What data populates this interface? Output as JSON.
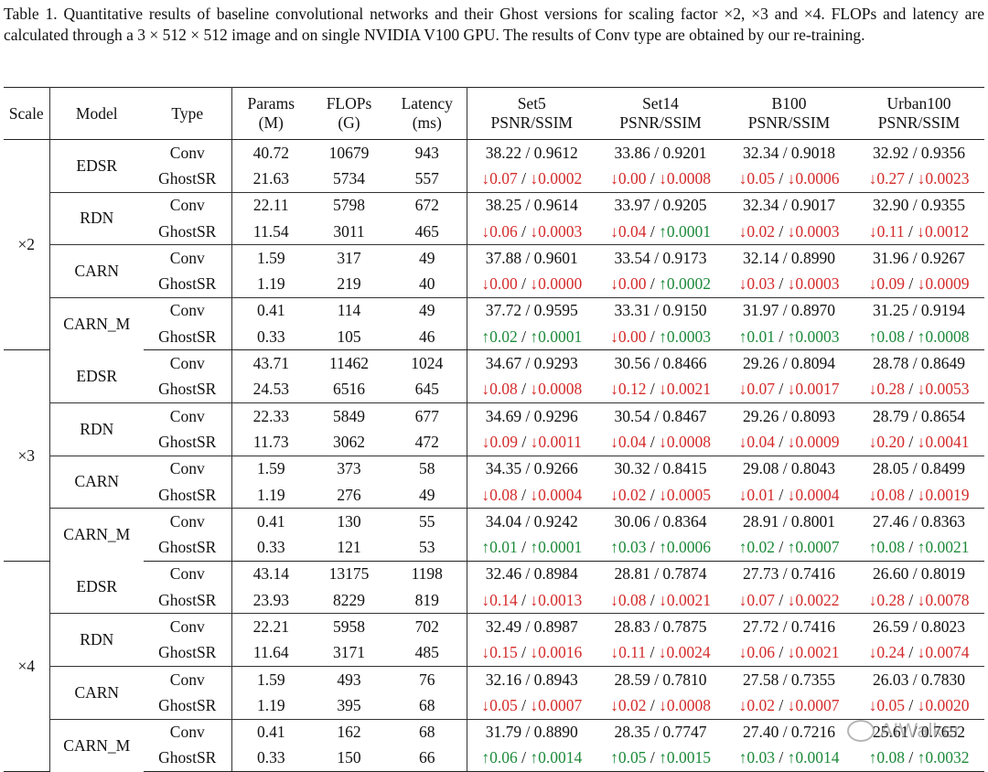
{
  "caption": "Table 1. Quantitative results of baseline convolutional networks and their Ghost versions for scaling factor ×2, ×3 and ×4. FLOPs and latency are calculated through a 3 × 512 × 512 image and on single NVIDIA V100 GPU. The results of Conv type are obtained by our re-training.",
  "headers": {
    "scale": "Scale",
    "model": "Model",
    "type": "Type",
    "params": "Params",
    "params_unit": "(M)",
    "flops": "FLOPs",
    "flops_unit": "(G)",
    "latency": "Latency",
    "latency_unit": "(ms)",
    "set5": "Set5",
    "set14": "Set14",
    "b100": "B100",
    "urban100": "Urban100",
    "metric": "PSNR/SSIM"
  },
  "colors": {
    "down": "#d42b2b",
    "up": "#1d8a3a"
  },
  "scales": [
    {
      "label": "×2",
      "models": [
        {
          "name": "EDSR",
          "conv": [
            "40.72",
            "10679",
            "943",
            "38.22 / 0.9612",
            "33.86 / 0.9201",
            "32.34 / 0.9018",
            "32.92 / 0.9356"
          ],
          "ghost": [
            "21.63",
            "5734",
            "557"
          ],
          "deltas": [
            [
              "↓0.07",
              "↓0.0002"
            ],
            [
              "↓0.00",
              "↓0.0008"
            ],
            [
              "↓0.05",
              "↓0.0006"
            ],
            [
              "↓0.27",
              "↓0.0023"
            ]
          ]
        },
        {
          "name": "RDN",
          "conv": [
            "22.11",
            "5798",
            "672",
            "38.25 / 0.9614",
            "33.97 / 0.9205",
            "32.34 / 0.9017",
            "32.90 / 0.9355"
          ],
          "ghost": [
            "11.54",
            "3011",
            "465"
          ],
          "deltas": [
            [
              "↓0.06",
              "↓0.0003"
            ],
            [
              "↓0.04",
              "↑0.0001"
            ],
            [
              "↓0.02",
              "↓0.0003"
            ],
            [
              "↓0.11",
              "↓0.0012"
            ]
          ]
        },
        {
          "name": "CARN",
          "conv": [
            "1.59",
            "317",
            "49",
            "37.88 / 0.9601",
            "33.54 / 0.9173",
            "32.14 / 0.8990",
            "31.96 / 0.9267"
          ],
          "ghost": [
            "1.19",
            "219",
            "40"
          ],
          "deltas": [
            [
              "↓0.00",
              "↓0.0000"
            ],
            [
              "↓0.00",
              "↑0.0002"
            ],
            [
              "↓0.03",
              "↓0.0003"
            ],
            [
              "↓0.09",
              "↓0.0009"
            ]
          ]
        },
        {
          "name": "CARN_M",
          "conv": [
            "0.41",
            "114",
            "49",
            "37.72 / 0.9595",
            "33.31 / 0.9150",
            "31.97 / 0.8970",
            "31.25 / 0.9194"
          ],
          "ghost": [
            "0.33",
            "105",
            "46"
          ],
          "deltas": [
            [
              "↑0.02",
              "↑0.0001"
            ],
            [
              "↓0.00",
              "↑0.0003"
            ],
            [
              "↑0.01",
              "↑0.0003"
            ],
            [
              "↑0.08",
              "↑0.0008"
            ]
          ]
        }
      ]
    },
    {
      "label": "×3",
      "models": [
        {
          "name": "EDSR",
          "conv": [
            "43.71",
            "11462",
            "1024",
            "34.67 / 0.9293",
            "30.56 / 0.8466",
            "29.26 / 0.8094",
            "28.78 / 0.8649"
          ],
          "ghost": [
            "24.53",
            "6516",
            "645"
          ],
          "deltas": [
            [
              "↓0.08",
              "↓0.0008"
            ],
            [
              "↓0.12",
              "↓0.0021"
            ],
            [
              "↓0.07",
              "↓0.0017"
            ],
            [
              "↓0.28",
              "↓0.0053"
            ]
          ]
        },
        {
          "name": "RDN",
          "conv": [
            "22.33",
            "5849",
            "677",
            "34.69 / 0.9296",
            "30.54 / 0.8467",
            "29.26 / 0.8093",
            "28.79 / 0.8654"
          ],
          "ghost": [
            "11.73",
            "3062",
            "472"
          ],
          "deltas": [
            [
              "↓0.09",
              "↓0.0011"
            ],
            [
              "↓0.04",
              "↓0.0008"
            ],
            [
              "↓0.04",
              "↓0.0009"
            ],
            [
              "↓0.20",
              "↓0.0041"
            ]
          ]
        },
        {
          "name": "CARN",
          "conv": [
            "1.59",
            "373",
            "58",
            "34.35 / 0.9266",
            "30.32 / 0.8415",
            "29.08 / 0.8043",
            "28.05 / 0.8499"
          ],
          "ghost": [
            "1.19",
            "276",
            "49"
          ],
          "deltas": [
            [
              "↓0.08",
              "↓0.0004"
            ],
            [
              "↓0.02",
              "↓0.0005"
            ],
            [
              "↓0.01",
              "↓0.0004"
            ],
            [
              "↓0.08",
              "↓0.0019"
            ]
          ]
        },
        {
          "name": "CARN_M",
          "conv": [
            "0.41",
            "130",
            "55",
            "34.04 / 0.9242",
            "30.06 / 0.8364",
            "28.91 / 0.8001",
            "27.46 / 0.8363"
          ],
          "ghost": [
            "0.33",
            "121",
            "53"
          ],
          "deltas": [
            [
              "↑0.01",
              "↑0.0001"
            ],
            [
              "↑0.03",
              "↑0.0006"
            ],
            [
              "↑0.02",
              "↑0.0007"
            ],
            [
              "↑0.08",
              "↑0.0021"
            ]
          ]
        }
      ]
    },
    {
      "label": "×4",
      "models": [
        {
          "name": "EDSR",
          "conv": [
            "43.14",
            "13175",
            "1198",
            "32.46 / 0.8984",
            "28.81 / 0.7874",
            "27.73 / 0.7416",
            "26.60 / 0.8019"
          ],
          "ghost": [
            "23.93",
            "8229",
            "819"
          ],
          "deltas": [
            [
              "↓0.14",
              "↓0.0013"
            ],
            [
              "↓0.08",
              "↓0.0021"
            ],
            [
              "↓0.07",
              "↓0.0022"
            ],
            [
              "↓0.28",
              "↓0.0078"
            ]
          ]
        },
        {
          "name": "RDN",
          "conv": [
            "22.21",
            "5958",
            "702",
            "32.49 / 0.8987",
            "28.83 / 0.7875",
            "27.72 / 0.7416",
            "26.59 / 0.8023"
          ],
          "ghost": [
            "11.64",
            "3171",
            "485"
          ],
          "deltas": [
            [
              "↓0.15",
              "↓0.0016"
            ],
            [
              "↓0.11",
              "↓0.0024"
            ],
            [
              "↓0.06",
              "↓0.0021"
            ],
            [
              "↓0.24",
              "↓0.0074"
            ]
          ]
        },
        {
          "name": "CARN",
          "conv": [
            "1.59",
            "493",
            "76",
            "32.16 / 0.8943",
            "28.59 / 0.7810",
            "27.58 / 0.7355",
            "26.03 / 0.7830"
          ],
          "ghost": [
            "1.19",
            "395",
            "68"
          ],
          "deltas": [
            [
              "↓0.05",
              "↓0.0007"
            ],
            [
              "↓0.02",
              "↓0.0008"
            ],
            [
              "↓0.02",
              "↓0.0007"
            ],
            [
              "↓0.05",
              "↓0.0020"
            ]
          ]
        },
        {
          "name": "CARN_M",
          "conv": [
            "0.41",
            "162",
            "68",
            "31.79 / 0.8890",
            "28.35 / 0.7747",
            "27.40 / 0.7216",
            "25.61 / 0.7652"
          ],
          "ghost": [
            "0.33",
            "150",
            "66"
          ],
          "deltas": [
            [
              "↑0.06",
              "↑0.0014"
            ],
            [
              "↑0.05",
              "↑0.0015"
            ],
            [
              "↑0.03",
              "↑0.0014"
            ],
            [
              "↑0.08",
              "↑0.0032"
            ]
          ]
        }
      ]
    }
  ],
  "type_conv": "Conv",
  "type_ghost": "GhostSR",
  "watermark": "AIWalker"
}
